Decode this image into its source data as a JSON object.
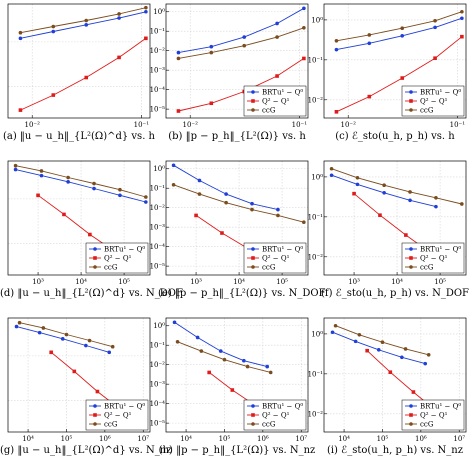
{
  "colors": {
    "BR_Q0": "#1f3fd6",
    "Q2_Q1": "#e01b1b",
    "ccG": "#7a4c1e",
    "grid": "#d6d6d6"
  },
  "chart_data": [
    {
      "type": "line",
      "caption": "(a) ‖u − u_h‖_{L²(Ω)^d} vs. h",
      "xscale": "log",
      "yscale": "log",
      "xlim": [
        0.006,
        0.12
      ],
      "ylim": [
        0.002,
        0.7
      ],
      "xticks": [
        {
          "v": 0.01,
          "label": "10⁻²"
        },
        {
          "v": 0.1,
          "label": "10⁻¹"
        }
      ],
      "yticks": [],
      "legend": false,
      "series": [
        {
          "name": "BR_Q0",
          "x": [
            0.0078,
            0.0156,
            0.03125,
            0.0625,
            0.11
          ],
          "y": [
            0.12,
            0.17,
            0.24,
            0.34,
            0.47
          ]
        },
        {
          "name": "Q2_Q1",
          "x": [
            0.0078,
            0.0156,
            0.03125,
            0.0625,
            0.11
          ],
          "y": [
            0.003,
            0.0065,
            0.016,
            0.045,
            0.12
          ]
        },
        {
          "name": "ccG",
          "x": [
            0.0078,
            0.0156,
            0.03125,
            0.0625,
            0.11
          ],
          "y": [
            0.16,
            0.22,
            0.3,
            0.42,
            0.58
          ]
        }
      ]
    },
    {
      "type": "line",
      "caption": "(b) ‖p − p_h‖_{L²(Ω)} vs. h",
      "xscale": "log",
      "yscale": "log",
      "xlim": [
        0.006,
        0.12
      ],
      "ylim": [
        3.5e-06,
        2.5
      ],
      "xticks": [
        {
          "v": 0.01,
          "label": "10⁻²"
        },
        {
          "v": 0.1,
          "label": "10⁻¹"
        }
      ],
      "yticks": [
        {
          "v": 1,
          "label": "10⁰"
        },
        {
          "v": 0.1,
          "label": "10⁻¹"
        },
        {
          "v": 0.01,
          "label": "10⁻²"
        },
        {
          "v": 0.001,
          "label": "10⁻³"
        },
        {
          "v": 0.0001,
          "label": "10⁻⁴"
        },
        {
          "v": 1e-05,
          "label": "10⁻⁵"
        }
      ],
      "legend": true,
      "series": [
        {
          "name": "BR_Q0",
          "x": [
            0.0078,
            0.0156,
            0.03125,
            0.0625,
            0.11
          ],
          "y": [
            0.008,
            0.016,
            0.05,
            0.25,
            1.5
          ]
        },
        {
          "name": "Q2_Q1",
          "x": [
            0.0078,
            0.0156,
            0.03125,
            0.0625,
            0.11
          ],
          "y": [
            8e-06,
            2e-05,
            8e-05,
            0.0005,
            0.004
          ]
        },
        {
          "name": "ccG",
          "x": [
            0.0078,
            0.0156,
            0.03125,
            0.0625,
            0.11
          ],
          "y": [
            0.004,
            0.008,
            0.018,
            0.05,
            0.15
          ]
        }
      ]
    },
    {
      "type": "line",
      "caption": "(c) ℰ_sto(u_h, p_h) vs. h",
      "xscale": "log",
      "yscale": "log",
      "xlim": [
        0.006,
        0.12
      ],
      "ylim": [
        0.0035,
        2.5
      ],
      "xticks": [
        {
          "v": 0.01,
          "label": "10⁻²"
        },
        {
          "v": 0.1,
          "label": "10⁻¹"
        }
      ],
      "yticks": [
        {
          "v": 1,
          "label": "10⁰"
        },
        {
          "v": 0.1,
          "label": "10⁻¹"
        },
        {
          "v": 0.01,
          "label": "10⁻²"
        }
      ],
      "legend": true,
      "series": [
        {
          "name": "BR_Q0",
          "x": [
            0.0078,
            0.0156,
            0.03125,
            0.0625,
            0.11
          ],
          "y": [
            0.18,
            0.26,
            0.4,
            0.65,
            1.1
          ]
        },
        {
          "name": "Q2_Q1",
          "x": [
            0.0078,
            0.0156,
            0.03125,
            0.0625,
            0.11
          ],
          "y": [
            0.005,
            0.012,
            0.035,
            0.11,
            0.38
          ]
        },
        {
          "name": "ccG",
          "x": [
            0.0078,
            0.0156,
            0.03125,
            0.0625,
            0.11
          ],
          "y": [
            0.3,
            0.42,
            0.62,
            0.95,
            1.6
          ]
        }
      ]
    },
    {
      "type": "line",
      "caption": "(d) ‖u − u_h‖_{L²(Ω)^d} vs. N_DOF",
      "xscale": "log",
      "yscale": "log",
      "xlim": [
        200,
        400000
      ],
      "ylim": [
        0.002,
        0.7
      ],
      "xticks": [
        {
          "v": 1000,
          "label": "10³"
        },
        {
          "v": 10000,
          "label": "10⁴"
        },
        {
          "v": 100000,
          "label": "10⁵"
        }
      ],
      "yticks": [],
      "legend": true,
      "series": [
        {
          "name": "BR_Q0",
          "x": [
            300,
            1200,
            5000,
            20000,
            80000,
            320000
          ],
          "y": [
            0.45,
            0.33,
            0.24,
            0.17,
            0.12,
            0.085
          ]
        },
        {
          "name": "Q2_Q1",
          "x": [
            1000,
            4000,
            16000,
            64000,
            250000
          ],
          "y": [
            0.12,
            0.045,
            0.016,
            0.0065,
            0.003
          ]
        },
        {
          "name": "ccG",
          "x": [
            300,
            1200,
            5000,
            20000,
            80000,
            320000
          ],
          "y": [
            0.55,
            0.42,
            0.3,
            0.22,
            0.16,
            0.11
          ]
        }
      ]
    },
    {
      "type": "line",
      "caption": "(e) ‖p − p_h‖_{L²(Ω)} vs. N_DOF",
      "xscale": "log",
      "yscale": "log",
      "xlim": [
        200,
        400000
      ],
      "ylim": [
        3.5e-06,
        2.5
      ],
      "xticks": [
        {
          "v": 1000,
          "label": "10³"
        },
        {
          "v": 10000,
          "label": "10⁴"
        },
        {
          "v": 100000,
          "label": "10⁵"
        }
      ],
      "yticks": [
        {
          "v": 1,
          "label": "10⁰"
        },
        {
          "v": 0.1,
          "label": "10⁻¹"
        },
        {
          "v": 0.01,
          "label": "10⁻²"
        },
        {
          "v": 0.001,
          "label": "10⁻³"
        },
        {
          "v": 0.0001,
          "label": "10⁻⁴"
        },
        {
          "v": 1e-05,
          "label": "10⁻⁵"
        }
      ],
      "legend": true,
      "series": [
        {
          "name": "BR_Q0",
          "x": [
            300,
            1200,
            5000,
            20000,
            80000
          ],
          "y": [
            1.5,
            0.25,
            0.05,
            0.016,
            0.008
          ]
        },
        {
          "name": "Q2_Q1",
          "x": [
            1000,
            4000,
            16000,
            64000,
            250000
          ],
          "y": [
            0.004,
            0.0005,
            8e-05,
            2e-05,
            8e-06
          ]
        },
        {
          "name": "ccG",
          "x": [
            300,
            1200,
            5000,
            20000,
            80000,
            320000
          ],
          "y": [
            0.15,
            0.05,
            0.018,
            0.008,
            0.004,
            0.0018
          ]
        }
      ]
    },
    {
      "type": "line",
      "caption": "(f) ℰ_sto(u_h, p_h) vs. N_DOF",
      "xscale": "log",
      "yscale": "log",
      "xlim": [
        200,
        400000
      ],
      "ylim": [
        0.0035,
        2.5
      ],
      "xticks": [
        {
          "v": 1000,
          "label": "10³"
        },
        {
          "v": 10000,
          "label": "10⁴"
        },
        {
          "v": 100000,
          "label": "10⁵"
        }
      ],
      "yticks": [
        {
          "v": 1,
          "label": "10⁰"
        },
        {
          "v": 0.1,
          "label": "10⁻¹"
        },
        {
          "v": 0.01,
          "label": "10⁻²"
        }
      ],
      "legend": true,
      "series": [
        {
          "name": "BR_Q0",
          "x": [
            300,
            1200,
            5000,
            20000,
            80000
          ],
          "y": [
            1.1,
            0.65,
            0.4,
            0.26,
            0.18
          ]
        },
        {
          "name": "Q2_Q1",
          "x": [
            1000,
            4000,
            16000,
            64000,
            250000
          ],
          "y": [
            0.38,
            0.11,
            0.035,
            0.012,
            0.005
          ]
        },
        {
          "name": "ccG",
          "x": [
            300,
            1200,
            5000,
            20000,
            80000,
            320000
          ],
          "y": [
            1.6,
            0.95,
            0.62,
            0.42,
            0.3,
            0.21
          ]
        }
      ]
    },
    {
      "type": "line",
      "caption": "(g) ‖u − u_h‖_{L²(Ω)^d} vs. N_nz",
      "xscale": "log",
      "yscale": "log",
      "xlim": [
        3000,
        15000000
      ],
      "ylim": [
        0.002,
        0.7
      ],
      "xticks": [
        {
          "v": 10000,
          "label": "10⁴"
        },
        {
          "v": 100000,
          "label": "10⁵"
        },
        {
          "v": 1000000,
          "label": "10⁶"
        },
        {
          "v": 10000000,
          "label": "10⁷"
        }
      ],
      "yticks": [],
      "legend": true,
      "series": [
        {
          "name": "BR_Q0",
          "x": [
            5000,
            20000,
            80000,
            320000,
            1300000
          ],
          "y": [
            0.45,
            0.33,
            0.24,
            0.17,
            0.12
          ]
        },
        {
          "name": "Q2_Q1",
          "x": [
            40000,
            160000,
            640000,
            2500000,
            10000000
          ],
          "y": [
            0.12,
            0.045,
            0.016,
            0.0065,
            0.003
          ]
        },
        {
          "name": "ccG",
          "x": [
            6000,
            25000,
            100000,
            400000,
            1600000
          ],
          "y": [
            0.55,
            0.42,
            0.3,
            0.22,
            0.16
          ]
        }
      ]
    },
    {
      "type": "line",
      "caption": "(h) ‖p − p_h‖_{L²(Ω)} vs. N_nz",
      "xscale": "log",
      "yscale": "log",
      "xlim": [
        3000,
        15000000
      ],
      "ylim": [
        3.5e-06,
        2.5
      ],
      "xticks": [
        {
          "v": 10000,
          "label": "10⁴"
        },
        {
          "v": 100000,
          "label": "10⁵"
        },
        {
          "v": 1000000,
          "label": "10⁶"
        },
        {
          "v": 10000000,
          "label": "10⁷"
        }
      ],
      "yticks": [
        {
          "v": 1,
          "label": "10⁰"
        },
        {
          "v": 0.1,
          "label": "10⁻¹"
        },
        {
          "v": 0.01,
          "label": "10⁻²"
        },
        {
          "v": 0.001,
          "label": "10⁻³"
        },
        {
          "v": 0.0001,
          "label": "10⁻⁴"
        },
        {
          "v": 1e-05,
          "label": "10⁻⁵"
        }
      ],
      "legend": true,
      "series": [
        {
          "name": "BR_Q0",
          "x": [
            5000,
            20000,
            80000,
            320000,
            1300000
          ],
          "y": [
            1.5,
            0.25,
            0.05,
            0.016,
            0.008
          ]
        },
        {
          "name": "Q2_Q1",
          "x": [
            40000,
            160000,
            640000,
            2500000,
            10000000
          ],
          "y": [
            0.004,
            0.0005,
            8e-05,
            2e-05,
            8e-06
          ]
        },
        {
          "name": "ccG",
          "x": [
            6000,
            25000,
            100000,
            400000,
            1600000
          ],
          "y": [
            0.15,
            0.05,
            0.018,
            0.008,
            0.004
          ]
        }
      ]
    },
    {
      "type": "line",
      "caption": "(i) ℰ_sto(u_h, p_h) vs. N_nz",
      "xscale": "log",
      "yscale": "log",
      "xlim": [
        3000,
        15000000
      ],
      "ylim": [
        0.0035,
        2.5
      ],
      "xticks": [
        {
          "v": 10000,
          "label": "10⁴"
        },
        {
          "v": 100000,
          "label": "10⁵"
        },
        {
          "v": 1000000,
          "label": "10⁶"
        },
        {
          "v": 10000000,
          "label": "10⁷"
        }
      ],
      "yticks": [
        {
          "v": 1,
          "label": "10⁰"
        },
        {
          "v": 0.1,
          "label": "10⁻¹"
        },
        {
          "v": 0.01,
          "label": "10⁻²"
        }
      ],
      "legend": true,
      "series": [
        {
          "name": "BR_Q0",
          "x": [
            5000,
            20000,
            80000,
            320000,
            1300000
          ],
          "y": [
            1.1,
            0.65,
            0.4,
            0.26,
            0.18
          ]
        },
        {
          "name": "Q2_Q1",
          "x": [
            40000,
            160000,
            640000,
            2500000,
            10000000
          ],
          "y": [
            0.38,
            0.11,
            0.035,
            0.012,
            0.005
          ]
        },
        {
          "name": "ccG",
          "x": [
            6000,
            25000,
            100000,
            400000,
            1600000
          ],
          "y": [
            1.6,
            0.95,
            0.62,
            0.42,
            0.3
          ]
        }
      ]
    }
  ],
  "legend_labels": {
    "BR_Q0": "BRTu¹ − Q⁰",
    "Q2_Q1": "Q² − Q¹",
    "ccG": "ccG"
  }
}
